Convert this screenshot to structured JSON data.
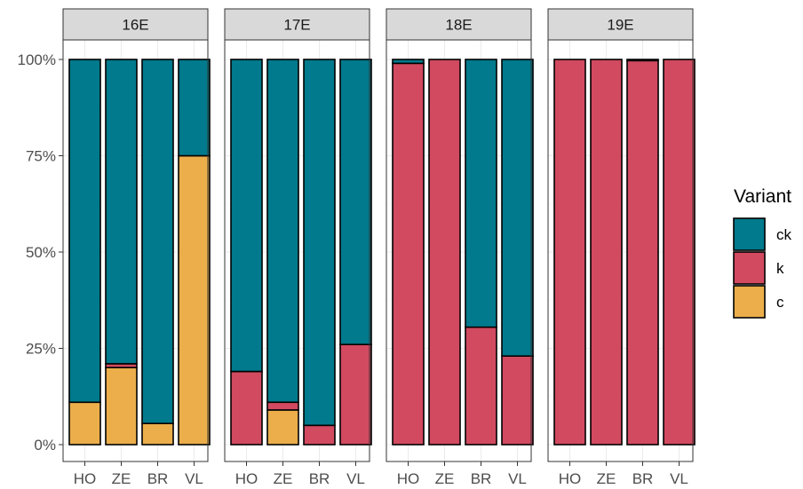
{
  "chart_data": {
    "type": "bar",
    "stacked": true,
    "facets": [
      "16E",
      "17E",
      "18E",
      "19E"
    ],
    "categories": [
      "HO",
      "ZE",
      "BR",
      "VL"
    ],
    "series": [
      {
        "name": "c",
        "color": "#EBAE4B",
        "values": [
          [
            0.11,
            0.2,
            0.055,
            0.75
          ],
          [
            0.0,
            0.09,
            0.0,
            0.0
          ],
          [
            0.0,
            0.0,
            0.0,
            0.0
          ],
          [
            0.0,
            0.0,
            0.0,
            0.0
          ]
        ]
      },
      {
        "name": "k",
        "color": "#D14A60",
        "values": [
          [
            0.0,
            0.01,
            0.0,
            0.0
          ],
          [
            0.19,
            0.02,
            0.05,
            0.26
          ],
          [
            0.99,
            1.0,
            0.305,
            0.23
          ],
          [
            1.0,
            1.0,
            0.997,
            1.0
          ]
        ]
      },
      {
        "name": "ck",
        "color": "#007A8C",
        "values": [
          [
            0.89,
            0.79,
            0.945,
            0.25
          ],
          [
            0.81,
            0.89,
            0.95,
            0.74
          ],
          [
            0.01,
            0.0,
            0.695,
            0.77
          ],
          [
            0.0,
            0.0,
            0.003,
            0.0
          ]
        ]
      }
    ],
    "yticks": [
      "0%",
      "25%",
      "50%",
      "75%",
      "100%"
    ],
    "ytick_values": [
      0,
      0.25,
      0.5,
      0.75,
      1.0
    ],
    "ylim": [
      0,
      1
    ],
    "xlabel": "",
    "ylabel": "",
    "legend": {
      "title": "Variant",
      "entries": [
        "ck",
        "k",
        "c"
      ],
      "position": "right"
    },
    "grid": true
  }
}
